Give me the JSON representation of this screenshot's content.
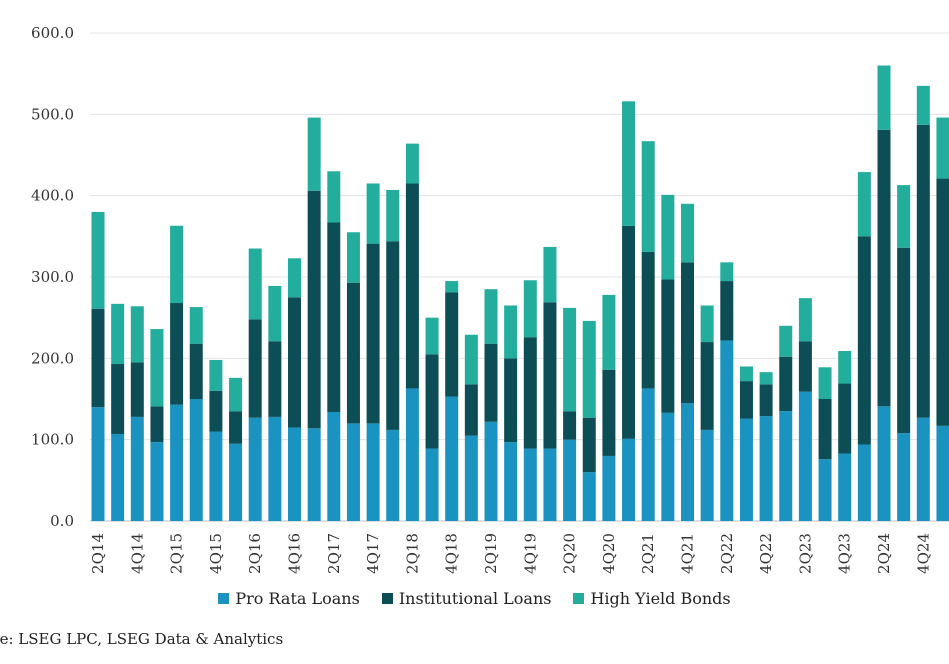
{
  "chart_data": {
    "type": "bar",
    "stacked": true,
    "categories": [
      "2Q14",
      "3Q14",
      "4Q14",
      "1Q15",
      "2Q15",
      "3Q15",
      "4Q15",
      "1Q16",
      "2Q16",
      "3Q16",
      "4Q16",
      "1Q17",
      "2Q17",
      "3Q17",
      "4Q17",
      "1Q18",
      "2Q18",
      "3Q18",
      "4Q18",
      "1Q19",
      "2Q19",
      "3Q19",
      "4Q19",
      "1Q20",
      "2Q20",
      "3Q20",
      "4Q20",
      "1Q21",
      "2Q21",
      "3Q21",
      "4Q21",
      "1Q22",
      "2Q22",
      "3Q22",
      "4Q22",
      "1Q23",
      "2Q23",
      "3Q23",
      "4Q23",
      "1Q24",
      "2Q24",
      "3Q24",
      "4Q24",
      "1Q25"
    ],
    "x_tick_labels": [
      "2Q14",
      "4Q14",
      "2Q15",
      "4Q15",
      "2Q16",
      "4Q16",
      "2Q17",
      "4Q17",
      "2Q18",
      "4Q18",
      "2Q19",
      "4Q19",
      "2Q20",
      "4Q20",
      "2Q21",
      "4Q21",
      "2Q22",
      "4Q22",
      "2Q23",
      "4Q23",
      "2Q24",
      "4Q24"
    ],
    "series": [
      {
        "name": "Pro Rata Loans",
        "color": "#1a93c1",
        "values": [
          140,
          107,
          128,
          97,
          143,
          150,
          110,
          95,
          127,
          128,
          115,
          114,
          134,
          120,
          120,
          112,
          163,
          89,
          153,
          105,
          122,
          97,
          89,
          89,
          100,
          60,
          80,
          101,
          163,
          133,
          145,
          112,
          222,
          126,
          129,
          135,
          159,
          76,
          83,
          94,
          141,
          108,
          127,
          117
        ]
      },
      {
        "name": "Institutional Loans",
        "color": "#0d4d56",
        "values": [
          121,
          86,
          67,
          44,
          125,
          68,
          50,
          40,
          121,
          93,
          160,
          292,
          233,
          173,
          221,
          232,
          252,
          116,
          128,
          63,
          96,
          103,
          137,
          180,
          35,
          67,
          106,
          262,
          168,
          164,
          173,
          108,
          73,
          46,
          39,
          67,
          62,
          74,
          86,
          256,
          340,
          228,
          360,
          304
        ]
      },
      {
        "name": "High Yield Bonds",
        "color": "#22ad9d",
        "values": [
          119,
          74,
          69,
          95,
          95,
          45,
          38,
          41,
          87,
          68,
          48,
          90,
          63,
          62,
          74,
          63,
          49,
          45,
          14,
          61,
          67,
          65,
          70,
          68,
          127,
          119,
          92,
          153,
          136,
          104,
          72,
          45,
          23,
          18,
          15,
          38,
          53,
          39,
          40,
          79,
          79,
          77,
          48,
          75
        ]
      }
    ],
    "title": "",
    "xlabel": "",
    "ylabel": "",
    "ylim": [
      0,
      600
    ],
    "y_ticks": [
      "0.0",
      "100.0",
      "200.0",
      "300.0",
      "400.0",
      "500.0",
      "600.0"
    ],
    "grid": true,
    "legend_position": "bottom"
  },
  "source": "rce:  LSEG LPC, LSEG Data & Analytics"
}
